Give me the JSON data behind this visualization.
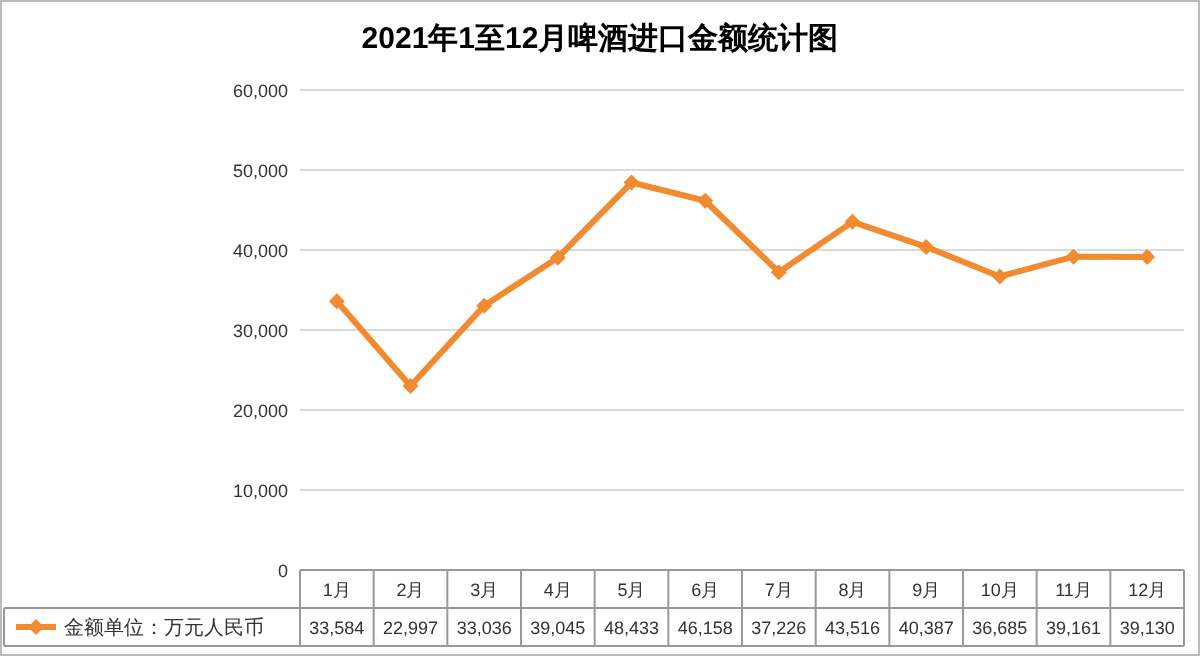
{
  "chart_data": {
    "type": "line",
    "title": "2021年1至12月啤酒进口金额统计图",
    "categories": [
      "1月",
      "2月",
      "3月",
      "4月",
      "5月",
      "6月",
      "7月",
      "8月",
      "9月",
      "10月",
      "11月",
      "12月"
    ],
    "series": [
      {
        "name": "金额单位：万元人民币",
        "color": "#f28a30",
        "values": [
          33584,
          22997,
          33036,
          39045,
          48433,
          46158,
          37226,
          43516,
          40387,
          36685,
          39161,
          39130
        ],
        "value_labels": [
          "33,584",
          "22,997",
          "33,036",
          "39,045",
          "48,433",
          "46,158",
          "37,226",
          "43,516",
          "40,387",
          "36,685",
          "39,161",
          "39,130"
        ]
      }
    ],
    "ylim": [
      0,
      60000
    ],
    "yticks": [
      {
        "value": 0,
        "label": "0"
      },
      {
        "value": 10000,
        "label": "10,000"
      },
      {
        "value": 20000,
        "label": "20,000"
      },
      {
        "value": 30000,
        "label": "30,000"
      },
      {
        "value": 40000,
        "label": "40,000"
      },
      {
        "value": 50000,
        "label": "50,000"
      },
      {
        "value": 60000,
        "label": "60,000"
      }
    ],
    "grid": "y",
    "legend": "bottom",
    "marker": "diamond",
    "line_style": "solid"
  }
}
